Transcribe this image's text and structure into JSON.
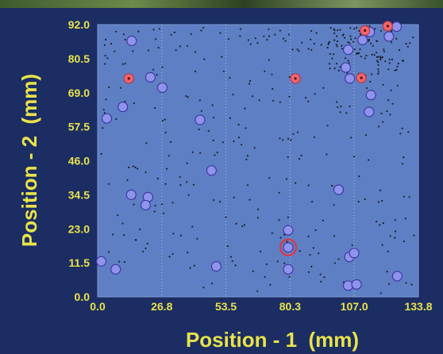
{
  "chart_data": {
    "type": "scatter",
    "xlabel": "Position - 1  (mm)",
    "ylabel": "Position - 2  (mm)",
    "xlim": [
      0.0,
      133.8
    ],
    "ylim": [
      0.0,
      92.0
    ],
    "x_ticks": [
      "0.0",
      "26.8",
      "53.5",
      "80.3",
      "107.0",
      "133.8"
    ],
    "y_ticks": [
      "0.0",
      "11.5",
      "23.0",
      "34.5",
      "46.0",
      "57.5",
      "69.0",
      "80.5",
      "92.0"
    ],
    "x_gridlines": [
      26.8,
      53.5,
      80.3,
      107.0
    ],
    "colors": {
      "background": "#1b2d63",
      "plot_area": "#5e7fc4",
      "tick_text": "#e8e34a",
      "blue_marker": "#8f93ec",
      "red_marker": "#f0666e",
      "small_dots": "#111111"
    },
    "series": [
      {
        "marker": "blue-circle",
        "points": [
          [
            14.2,
            86.5
          ],
          [
            22.0,
            74.2
          ],
          [
            27.0,
            70.7
          ],
          [
            10.5,
            64.2
          ],
          [
            3.8,
            60.3
          ],
          [
            42.7,
            59.8
          ],
          [
            47.5,
            42.7
          ],
          [
            14.0,
            34.5
          ],
          [
            21.0,
            33.7
          ],
          [
            20.0,
            31.0
          ],
          [
            1.5,
            12.0
          ],
          [
            7.5,
            9.3
          ],
          [
            49.5,
            10.3
          ],
          [
            79.5,
            22.5
          ],
          [
            79.5,
            9.3
          ],
          [
            100.5,
            36.2
          ],
          [
            103.5,
            77.5
          ],
          [
            105.2,
            73.8
          ],
          [
            104.5,
            83.5
          ],
          [
            110.5,
            86.8
          ],
          [
            113.5,
            89.5
          ],
          [
            114.0,
            68.2
          ],
          [
            113.2,
            62.5
          ],
          [
            121.5,
            88.0
          ],
          [
            124.7,
            91.3
          ],
          [
            105.0,
            13.5
          ],
          [
            107.0,
            14.8
          ],
          [
            104.5,
            3.8
          ],
          [
            108.0,
            4.2
          ],
          [
            125.0,
            7.0
          ]
        ]
      },
      {
        "marker": "red-dot",
        "points": [
          [
            13.0,
            73.8
          ],
          [
            82.5,
            73.8
          ],
          [
            111.5,
            90.0
          ],
          [
            121.0,
            91.5
          ],
          [
            110.0,
            74.0
          ]
        ]
      },
      {
        "marker": "red-ring",
        "points": [
          [
            79.5,
            16.7
          ]
        ]
      }
    ]
  }
}
